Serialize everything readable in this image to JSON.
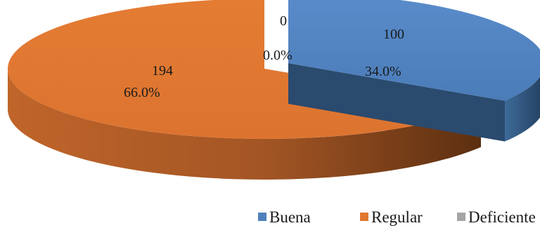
{
  "chart_data": {
    "type": "pie",
    "title": "",
    "legend_position": "bottom-right",
    "slices": [
      {
        "name": "Buena",
        "value": 100,
        "percent": "34.0%",
        "value_label": "100",
        "color": "#4f81bd",
        "side_color": "#2e5379"
      },
      {
        "name": "Regular",
        "value": 194,
        "percent": "66.0%",
        "value_label": "194",
        "color": "#e0782f",
        "side_color": "#8a4719"
      },
      {
        "name": "Deficiente",
        "value": 0,
        "percent": "0.0%",
        "value_label": "0",
        "color": "#a5a5a5",
        "side_color": "#6e6e6e"
      }
    ]
  }
}
